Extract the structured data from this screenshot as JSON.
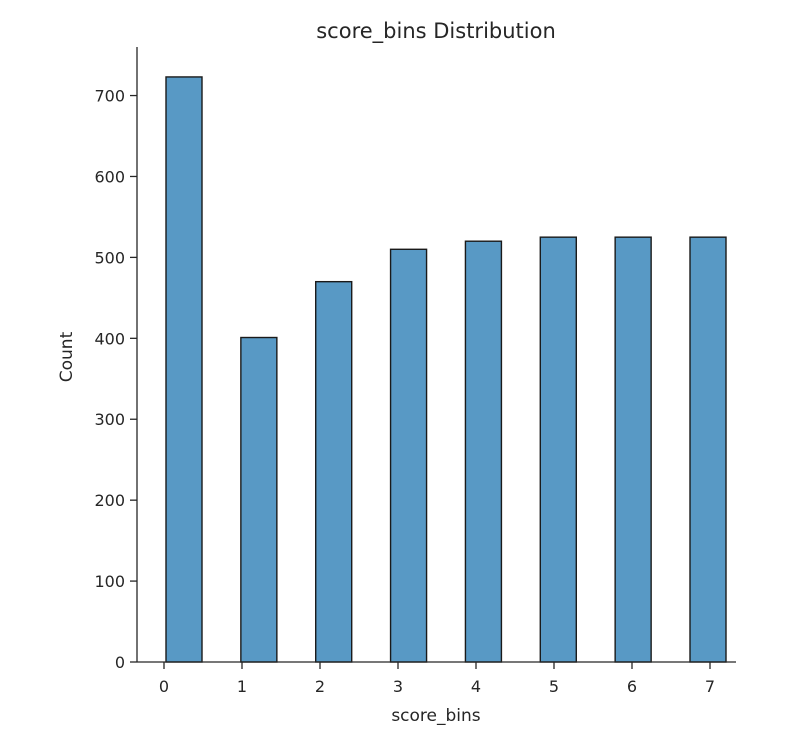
{
  "chart_data": {
    "type": "bar",
    "title": "score_bins Distribution",
    "xlabel": "score_bins",
    "ylabel": "Count",
    "categories": [
      "0",
      "1",
      "2",
      "3",
      "4",
      "5",
      "6",
      "7"
    ],
    "values": [
      723,
      401,
      470,
      510,
      520,
      525,
      525,
      525
    ],
    "yticks": [
      "0",
      "100",
      "200",
      "300",
      "400",
      "500",
      "600",
      "700"
    ],
    "ylim": [
      0,
      760
    ],
    "grid": false,
    "legend": "none",
    "colors": {
      "bar_fill": "#5899c5",
      "bar_edge": "#1a1a1a",
      "axis": "#262626"
    }
  }
}
